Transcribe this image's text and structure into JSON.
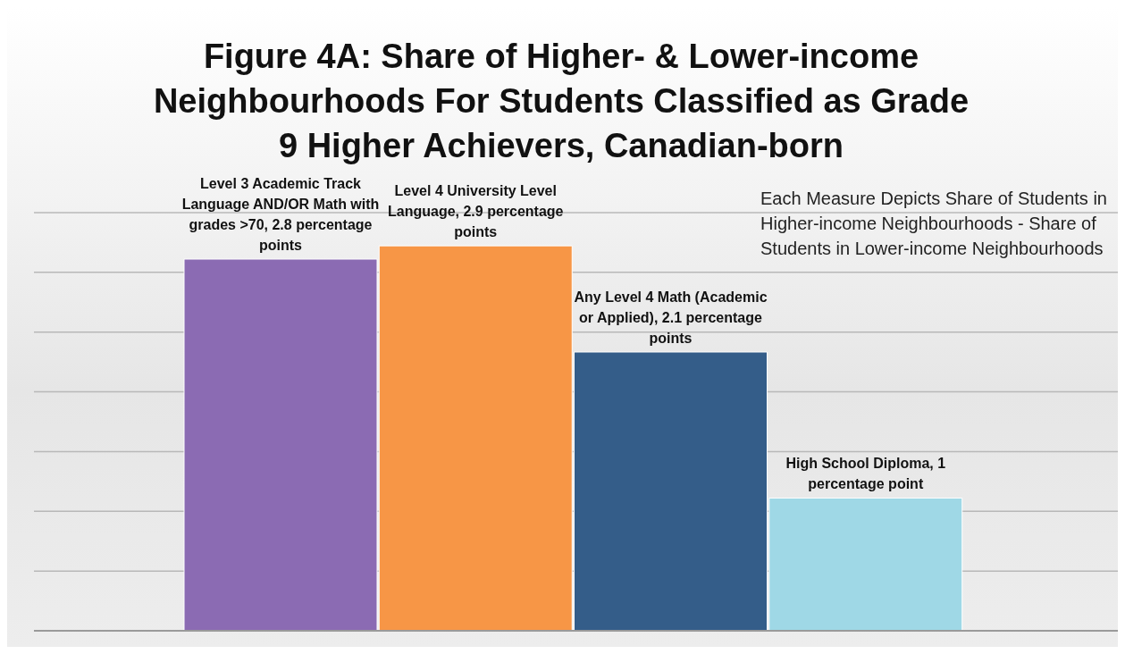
{
  "chart_data": {
    "type": "bar",
    "title": "Figure 4A: Share of Higher- & Lower-income Neighbourhoods For Students Classified as Grade 9 Higher Achievers, Canadian-born",
    "categories": [
      null,
      null,
      null,
      null
    ],
    "values": [
      2.8,
      2.9,
      2.1,
      1
    ],
    "colors": [
      "#8b6bb3",
      "#f79646",
      "#345d89",
      "#9fd8e6"
    ],
    "value_labels": [
      "Level 3 Academic Track Language AND/OR Math with grades >70, 2.8 percentage points",
      "Level 4 University Level Language,  2.9 percentage points",
      "Any Level 4 Math (Academic or Applied), 2.1 percentage points",
      "High School Diploma, 1 percentage point"
    ],
    "annotations": [
      "Each Measure Depicts Share of Students in Higher-income Neighbourhoods - Share of Students in Lower-income Neighbourhoods"
    ],
    "tick_labels": false,
    "grid": "y"
  }
}
